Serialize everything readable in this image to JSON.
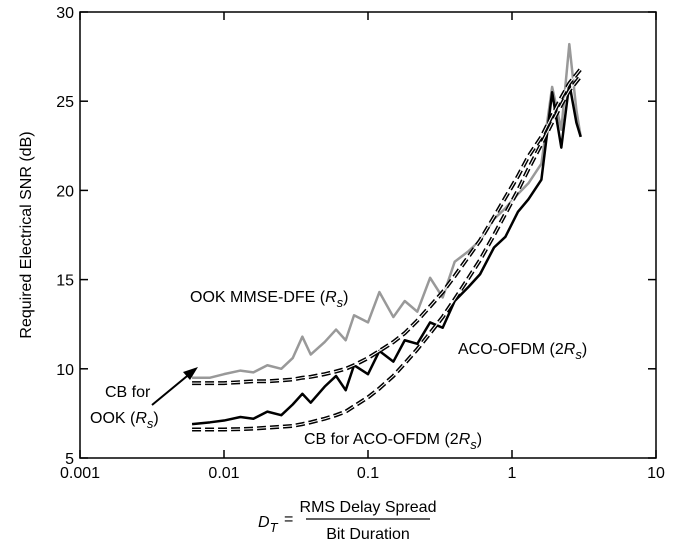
{
  "chart_data": {
    "type": "line",
    "xlog": true,
    "xlim": [
      0.001,
      10
    ],
    "xticks": [
      0.001,
      0.01,
      0.1,
      1,
      10
    ],
    "ylim": [
      5,
      30
    ],
    "yticks": [
      5,
      10,
      15,
      20,
      25,
      30
    ],
    "y_label": "Required Electrical SNR (dB)",
    "x_label": {
      "symbol": "D",
      "symbol_sub": "T",
      "equals": "=",
      "numerator": "RMS Delay Spread",
      "denominator": "Bit Duration"
    },
    "x": [
      0.006,
      0.008,
      0.01,
      0.013,
      0.016,
      0.02,
      0.025,
      0.03,
      0.035,
      0.04,
      0.05,
      0.06,
      0.07,
      0.08,
      0.1,
      0.12,
      0.15,
      0.18,
      0.22,
      0.27,
      0.33,
      0.4,
      0.5,
      0.6,
      0.75,
      0.9,
      1.1,
      1.3,
      1.6,
      1.9,
      2.2,
      2.5,
      2.8,
      3
    ],
    "series": [
      {
        "color": "#999999",
        "dashed": false,
        "label_parts": [
          {
            "text": "OOK MMSE-DFE ("
          },
          {
            "text": "R",
            "style": "italic"
          },
          {
            "text": "s",
            "style": "sub"
          },
          {
            "text": ")"
          }
        ],
        "values": [
          9.5,
          9.5,
          9.7,
          9.9,
          9.8,
          10.2,
          10.0,
          10.6,
          11.8,
          10.8,
          11.5,
          12.2,
          11.6,
          13.0,
          12.6,
          14.3,
          12.9,
          13.8,
          13.2,
          15.1,
          14.0,
          16.0,
          16.6,
          17.2,
          18.4,
          19.0,
          19.8,
          20.4,
          21.5,
          25.8,
          23.4,
          28.2,
          24.5,
          23.0
        ]
      },
      {
        "color": "#000000",
        "dashed": false,
        "label_parts": [
          {
            "text": "ACO-OFDM (2"
          },
          {
            "text": "R",
            "style": "italic"
          },
          {
            "text": "s",
            "style": "sub"
          },
          {
            "text": ")"
          }
        ],
        "values": [
          6.9,
          7.0,
          7.1,
          7.3,
          7.2,
          7.6,
          7.4,
          8.0,
          8.6,
          8.1,
          9.0,
          9.6,
          8.8,
          10.2,
          9.7,
          11.0,
          10.4,
          11.6,
          11.4,
          12.6,
          12.3,
          13.8,
          14.6,
          15.3,
          16.8,
          17.4,
          18.8,
          19.5,
          20.6,
          25.5,
          22.4,
          26.0,
          23.8,
          23.0
        ]
      },
      {
        "color": "#000000",
        "dashed": true,
        "label_parts": [
          {
            "text": "CB for"
          },
          {
            "text": "OOK ("
          },
          {
            "text": "R",
            "style": "italic"
          },
          {
            "text": "s",
            "style": "sub"
          },
          {
            "text": ")"
          }
        ],
        "values": [
          9.2,
          9.2,
          9.2,
          9.25,
          9.3,
          9.3,
          9.35,
          9.4,
          9.5,
          9.55,
          9.7,
          9.85,
          10.0,
          10.2,
          10.6,
          11.0,
          11.5,
          12.0,
          12.7,
          13.5,
          14.3,
          15.2,
          16.3,
          17.2,
          18.5,
          19.6,
          20.8,
          21.9,
          23.0,
          24.2,
          25.2,
          26.0,
          26.5,
          26.8
        ]
      },
      {
        "color": "#000000",
        "dashed": true,
        "label_parts": [
          {
            "text": "CB for ACO-OFDM (2"
          },
          {
            "text": "R",
            "style": "italic"
          },
          {
            "text": "s",
            "style": "sub"
          },
          {
            "text": ")"
          }
        ],
        "values": [
          6.6,
          6.6,
          6.6,
          6.62,
          6.65,
          6.7,
          6.75,
          6.8,
          6.9,
          7.0,
          7.2,
          7.4,
          7.6,
          7.9,
          8.4,
          8.9,
          9.6,
          10.3,
          11.1,
          12.0,
          12.9,
          13.9,
          15.1,
          16.1,
          17.5,
          18.7,
          20.0,
          21.2,
          22.6,
          23.8,
          24.8,
          25.6,
          26.1,
          26.4
        ]
      }
    ]
  }
}
